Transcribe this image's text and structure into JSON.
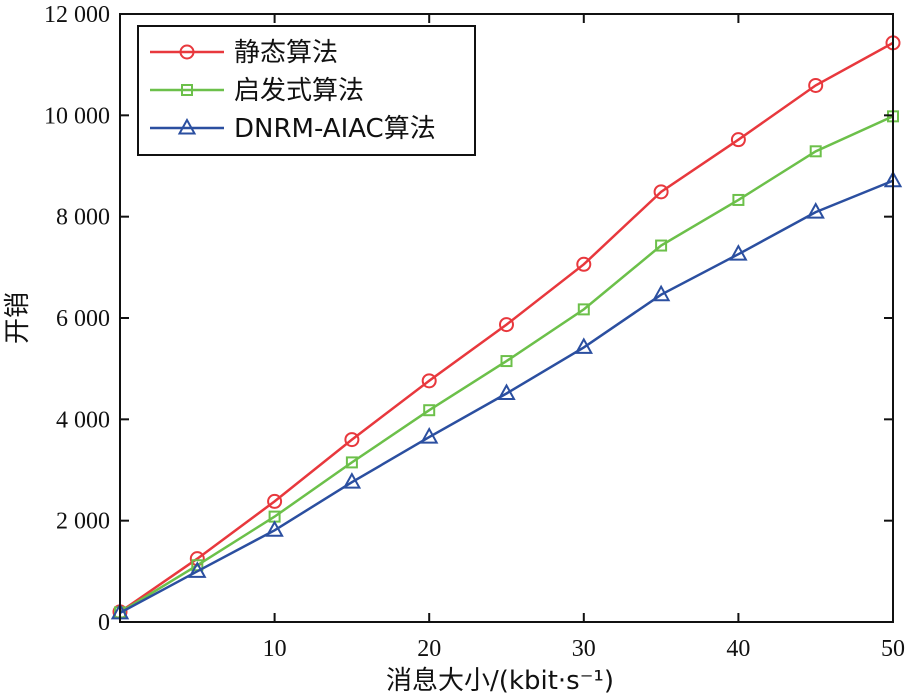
{
  "chart_data": {
    "type": "line",
    "xlabel": "消息大小/(kbit·s⁻¹)",
    "ylabel": "开销",
    "xlim": [
      0,
      50
    ],
    "ylim": [
      0,
      12000
    ],
    "xticks": [
      10,
      20,
      30,
      40,
      50
    ],
    "xtick_labels": [
      "10",
      "20",
      "30",
      "40",
      "50"
    ],
    "yticks": [
      0,
      2000,
      4000,
      6000,
      8000,
      10000,
      12000
    ],
    "ytick_labels": [
      "0",
      "2 000",
      "4 000",
      "6 000",
      "8 000",
      "10 000",
      "12 000"
    ],
    "grid": false,
    "legend_position": "top-left",
    "x": [
      0,
      5,
      10,
      15,
      20,
      25,
      30,
      35,
      40,
      45,
      50
    ],
    "series": [
      {
        "name": "静态算法",
        "color": "#e8383d",
        "marker": "circle",
        "values": [
          200,
          1250,
          2380,
          3600,
          4760,
          5870,
          7060,
          8490,
          9520,
          10590,
          11430
        ]
      },
      {
        "name": "启发式算法",
        "color": "#6cc04a",
        "marker": "square",
        "values": [
          190,
          1120,
          2080,
          3150,
          4180,
          5150,
          6170,
          7430,
          8330,
          9290,
          9980
        ]
      },
      {
        "name": "DNRM-AIAC算法",
        "color": "#2b4fa0",
        "marker": "triangle",
        "values": [
          180,
          1000,
          1810,
          2760,
          3650,
          4510,
          5420,
          6460,
          7260,
          8090,
          8710
        ]
      }
    ]
  }
}
